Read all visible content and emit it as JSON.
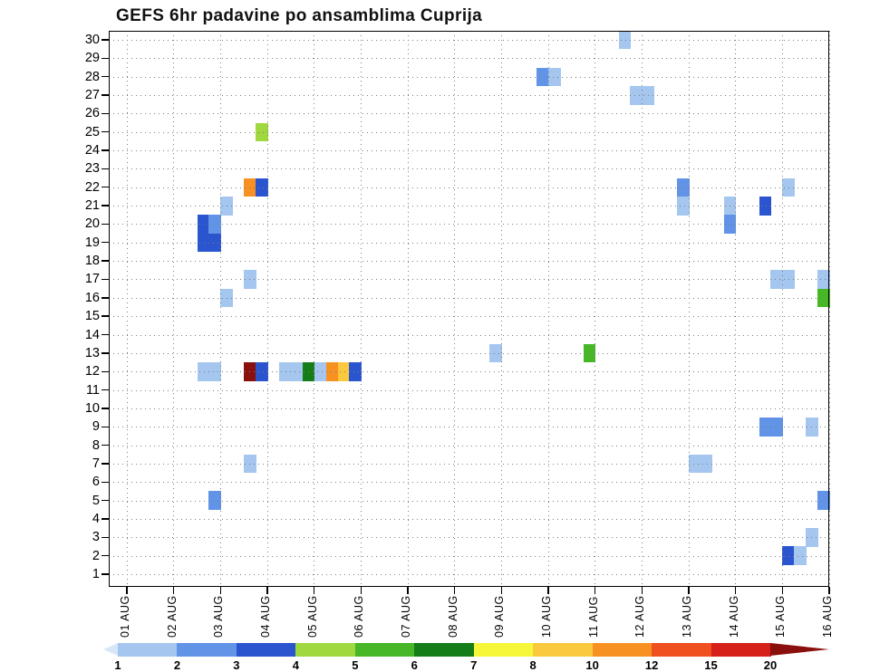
{
  "title": "GEFS 6hr padavine po ansamblima Cuprija",
  "chart_data": {
    "type": "heatmap",
    "title": "GEFS 6hr padavine po ansamblima Cuprija",
    "grid": true,
    "legend_position": "bottom",
    "x_axis": {
      "ticks": [
        "01 AUG",
        "02 AUG",
        "03 AUG",
        "04 AUG",
        "05 AUG",
        "06 AUG",
        "07 AUG",
        "08 AUG",
        "09 AUG",
        "10 AUG",
        "11 AUG",
        "12 AUG",
        "13 AUG",
        "14 AUG",
        "15 AUG",
        "16 AUG"
      ],
      "periods_per_day": 4,
      "period_hours": 6
    },
    "y_axis": {
      "ticks": [
        30,
        29,
        28,
        27,
        26,
        25,
        24,
        23,
        22,
        21,
        20,
        19,
        18,
        17,
        16,
        15,
        14,
        13,
        12,
        11,
        10,
        9,
        8,
        7,
        6,
        5,
        4,
        3,
        2,
        1
      ],
      "range": [
        1,
        30
      ]
    },
    "legend": {
      "thresholds": [
        1,
        2,
        3,
        4,
        5,
        6,
        7,
        8,
        10,
        12,
        15,
        20
      ],
      "colors": [
        "#d8e7f8",
        "#a5c6ef",
        "#6193e6",
        "#2a55cf",
        "#9fd83f",
        "#47b627",
        "#157d17",
        "#f7f73a",
        "#fbc93d",
        "#f79122",
        "#f04f1f",
        "#d6201a",
        "#8a100d"
      ]
    },
    "cells_key": "m=ensemble member (y), d=day index (1=01 AUG), p=6hr period of day (0..3), v=precip mm (bucket estimate)",
    "cells": [
      {
        "m": 30,
        "d": 11,
        "p": 2,
        "v": 1.5
      },
      {
        "m": 28,
        "d": 9,
        "p": 3,
        "v": 2.5
      },
      {
        "m": 28,
        "d": 10,
        "p": 0,
        "v": 1.5
      },
      {
        "m": 27,
        "d": 11,
        "p": 3,
        "v": 1.5
      },
      {
        "m": 27,
        "d": 12,
        "p": 0,
        "v": 1.5
      },
      {
        "m": 25,
        "d": 3,
        "p": 3,
        "v": 4.5
      },
      {
        "m": 22,
        "d": 3,
        "p": 2,
        "v": 11
      },
      {
        "m": 22,
        "d": 3,
        "p": 3,
        "v": 3.5
      },
      {
        "m": 22,
        "d": 12,
        "p": 3,
        "v": 2.5
      },
      {
        "m": 22,
        "d": 15,
        "p": 0,
        "v": 1.5
      },
      {
        "m": 21,
        "d": 3,
        "p": 0,
        "v": 1.5
      },
      {
        "m": 21,
        "d": 12,
        "p": 3,
        "v": 1.5
      },
      {
        "m": 21,
        "d": 13,
        "p": 3,
        "v": 1.5
      },
      {
        "m": 21,
        "d": 14,
        "p": 2,
        "v": 3.5
      },
      {
        "m": 20,
        "d": 2,
        "p": 2,
        "v": 3.5
      },
      {
        "m": 20,
        "d": 2,
        "p": 3,
        "v": 2.5
      },
      {
        "m": 20,
        "d": 13,
        "p": 3,
        "v": 2.5
      },
      {
        "m": 19,
        "d": 2,
        "p": 2,
        "v": 3.5
      },
      {
        "m": 19,
        "d": 2,
        "p": 3,
        "v": 3.5
      },
      {
        "m": 17,
        "d": 3,
        "p": 2,
        "v": 1.5
      },
      {
        "m": 17,
        "d": 14,
        "p": 3,
        "v": 1.5
      },
      {
        "m": 17,
        "d": 15,
        "p": 0,
        "v": 1.5
      },
      {
        "m": 17,
        "d": 15,
        "p": 3,
        "v": 1.5
      },
      {
        "m": 16,
        "d": 3,
        "p": 0,
        "v": 1.5
      },
      {
        "m": 16,
        "d": 15,
        "p": 3,
        "v": 5.5
      },
      {
        "m": 13,
        "d": 8,
        "p": 3,
        "v": 1.5
      },
      {
        "m": 13,
        "d": 10,
        "p": 3,
        "v": 5.5
      },
      {
        "m": 12,
        "d": 2,
        "p": 2,
        "v": 1.5
      },
      {
        "m": 12,
        "d": 2,
        "p": 3,
        "v": 1.5
      },
      {
        "m": 12,
        "d": 3,
        "p": 2,
        "v": 22
      },
      {
        "m": 12,
        "d": 3,
        "p": 3,
        "v": 3.5
      },
      {
        "m": 12,
        "d": 4,
        "p": 1,
        "v": 1.5
      },
      {
        "m": 12,
        "d": 4,
        "p": 2,
        "v": 1.5
      },
      {
        "m": 12,
        "d": 4,
        "p": 3,
        "v": 6.5
      },
      {
        "m": 12,
        "d": 5,
        "p": 0,
        "v": 1.5
      },
      {
        "m": 12,
        "d": 5,
        "p": 1,
        "v": 11
      },
      {
        "m": 12,
        "d": 5,
        "p": 2,
        "v": 9
      },
      {
        "m": 12,
        "d": 5,
        "p": 3,
        "v": 3.5
      },
      {
        "m": 9,
        "d": 14,
        "p": 2,
        "v": 2.5
      },
      {
        "m": 9,
        "d": 14,
        "p": 3,
        "v": 2.5
      },
      {
        "m": 9,
        "d": 15,
        "p": 2,
        "v": 1.5
      },
      {
        "m": 7,
        "d": 3,
        "p": 2,
        "v": 1.5
      },
      {
        "m": 7,
        "d": 13,
        "p": 0,
        "v": 1.5
      },
      {
        "m": 7,
        "d": 13,
        "p": 1,
        "v": 1.5
      },
      {
        "m": 5,
        "d": 2,
        "p": 3,
        "v": 2.5
      },
      {
        "m": 5,
        "d": 15,
        "p": 3,
        "v": 2.5
      },
      {
        "m": 3,
        "d": 15,
        "p": 2,
        "v": 1.5
      },
      {
        "m": 2,
        "d": 15,
        "p": 0,
        "v": 3.5
      },
      {
        "m": 2,
        "d": 15,
        "p": 1,
        "v": 1.5
      }
    ]
  }
}
